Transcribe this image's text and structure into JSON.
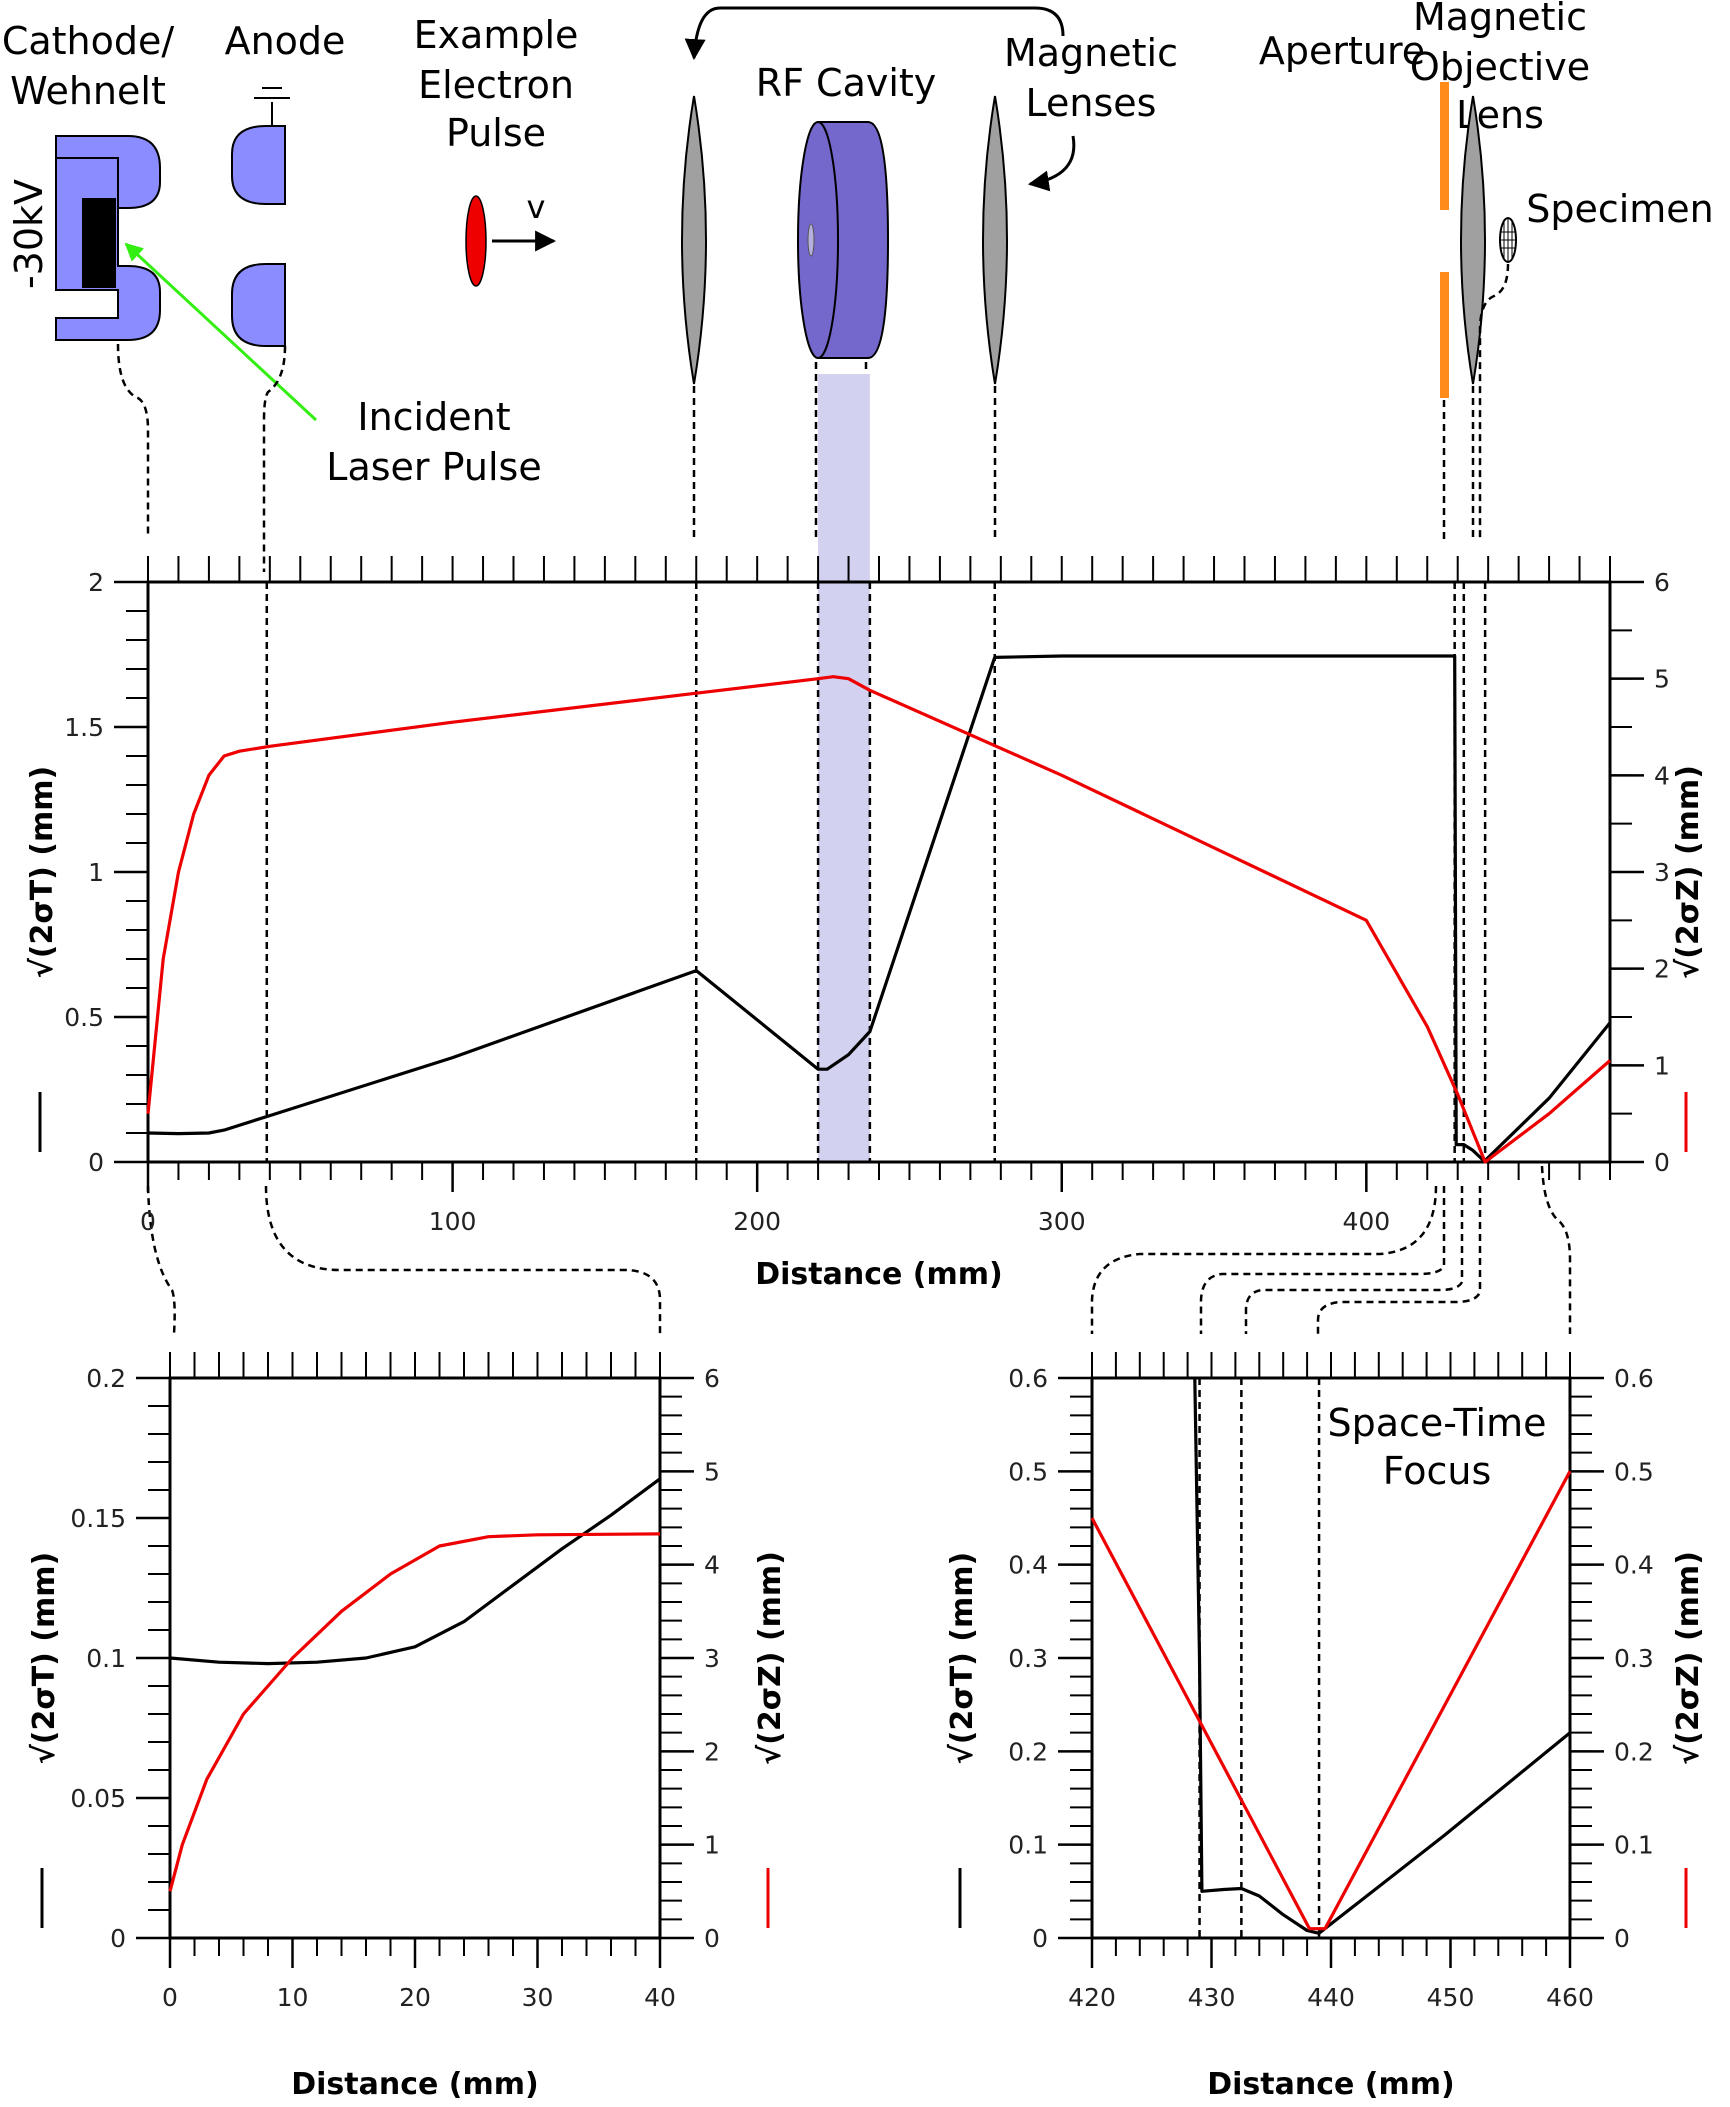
{
  "schematic": {
    "labels": {
      "cathode_line1": "Cathode/",
      "cathode_line2": "Wehnelt",
      "voltage": "-30kV",
      "anode": "Anode",
      "pulse_line1": "Example",
      "pulse_line2": "Electron",
      "pulse_line3": "Pulse",
      "velocity": "v",
      "rf_cavity": "RF Cavity",
      "lenses_line1": "Magnetic",
      "lenses_line2": "Lenses",
      "aperture": "Aperture",
      "objective_line1": "Magnetic",
      "objective_line2": "Objective",
      "objective_line3": "Lens",
      "specimen": "Specimen",
      "laser_line1": "Incident",
      "laser_line2": "Laser Pulse"
    },
    "colors": {
      "electrode": "#8a8cff",
      "cavity": "#7468cc",
      "lens": "#a0a0a0",
      "aperture": "#ff8c1a",
      "laser": "#33ee11",
      "pulse": "#ee0000",
      "cavity_band": "#d2d1f0"
    }
  },
  "chart_data": [
    {
      "id": "main",
      "type": "line",
      "xlabel": "Distance (mm)",
      "ylabel_left": "√(2σT) (mm)",
      "ylabel_right": "√(2σZ) (mm)",
      "xlim": [
        0,
        480
      ],
      "ylim_left": [
        0,
        2
      ],
      "ylim_right": [
        0,
        6
      ],
      "xticks": [
        0,
        100,
        200,
        300,
        400
      ],
      "yticks_left": [
        0,
        0.5,
        1,
        1.5,
        2
      ],
      "yticks_right": [
        0,
        1,
        2,
        3,
        4,
        5,
        6
      ],
      "shaded_region": [
        220,
        237
      ],
      "markers": [
        39,
        180,
        220,
        237,
        278,
        429,
        432,
        439
      ],
      "series": [
        {
          "axis": "left",
          "color": "#000000",
          "x": [
            0,
            10,
            20,
            25,
            40,
            100,
            180,
            220,
            223,
            230,
            237,
            278,
            300,
            350,
            429,
            429.5,
            432,
            435,
            438,
            439,
            460,
            480
          ],
          "y": [
            0.1,
            0.098,
            0.1,
            0.11,
            0.16,
            0.36,
            0.66,
            0.32,
            0.32,
            0.37,
            0.45,
            1.74,
            1.745,
            1.745,
            1.745,
            0.06,
            0.06,
            0.04,
            0.01,
            0.005,
            0.22,
            0.48
          ]
        },
        {
          "axis": "right",
          "color": "#ee0000",
          "x": [
            0,
            5,
            10,
            15,
            20,
            25,
            30,
            40,
            100,
            180,
            220,
            225,
            230,
            237,
            300,
            350,
            400,
            420,
            430,
            439,
            460,
            480
          ],
          "y": [
            0.5,
            2.1,
            3.0,
            3.6,
            4.0,
            4.2,
            4.25,
            4.3,
            4.55,
            4.85,
            5.0,
            5.02,
            5.0,
            4.88,
            4.0,
            3.25,
            2.5,
            1.4,
            0.7,
            0.0,
            0.5,
            1.05
          ]
        }
      ]
    },
    {
      "id": "inset_left",
      "type": "line",
      "xlabel": "Distance (mm)",
      "ylabel_left": "√(2σT) (mm)",
      "ylabel_right": "√(2σZ) (mm)",
      "xlim": [
        0,
        40
      ],
      "ylim_left": [
        0,
        0.2
      ],
      "ylim_right": [
        0,
        6
      ],
      "xticks": [
        0,
        10,
        20,
        30,
        40
      ],
      "yticks_left": [
        0,
        0.05,
        0.1,
        0.15,
        0.2
      ],
      "yticks_right": [
        0,
        1,
        2,
        3,
        4,
        5,
        6
      ],
      "series": [
        {
          "axis": "left",
          "color": "#000000",
          "x": [
            0,
            4,
            8,
            12,
            16,
            20,
            24,
            28,
            32,
            36,
            40
          ],
          "y": [
            0.1,
            0.0985,
            0.098,
            0.0985,
            0.1,
            0.104,
            0.113,
            0.126,
            0.139,
            0.151,
            0.164
          ]
        },
        {
          "axis": "right",
          "color": "#ee0000",
          "x": [
            0,
            1,
            3,
            6,
            10,
            14,
            18,
            22,
            26,
            30,
            40
          ],
          "y": [
            0.5,
            1.0,
            1.7,
            2.4,
            3.0,
            3.5,
            3.9,
            4.2,
            4.3,
            4.32,
            4.33
          ]
        }
      ]
    },
    {
      "id": "inset_right",
      "type": "line",
      "annotation": "Space-Time Focus",
      "xlabel": "Distance (mm)",
      "ylabel_left": "√(2σT) (mm)",
      "ylabel_right": "√(2σZ) (mm)",
      "xlim": [
        420,
        460
      ],
      "ylim_left": [
        0,
        0.6
      ],
      "ylim_right": [
        0,
        0.6
      ],
      "xticks": [
        420,
        430,
        440,
        450,
        460
      ],
      "yticks_left": [
        0,
        0.1,
        0.2,
        0.3,
        0.4,
        0.5,
        0.6
      ],
      "yticks_right": [
        0,
        0.1,
        0.2,
        0.3,
        0.4,
        0.5,
        0.6
      ],
      "markers": [
        429,
        432.5,
        439
      ],
      "series": [
        {
          "axis": "left",
          "color": "#000000",
          "x": [
            428.6,
            429.0,
            429.2,
            431,
            432.5,
            434,
            436,
            438,
            439,
            449.5,
            460
          ],
          "y": [
            0.6,
            0.3,
            0.05,
            0.052,
            0.053,
            0.045,
            0.025,
            0.008,
            0.005,
            0.11,
            0.22
          ]
        },
        {
          "axis": "right",
          "color": "#ee0000",
          "x": [
            420,
            438.2,
            439,
            439.5,
            460
          ],
          "y": [
            0.45,
            0.01,
            0.01,
            0.01,
            0.5
          ]
        }
      ]
    }
  ]
}
